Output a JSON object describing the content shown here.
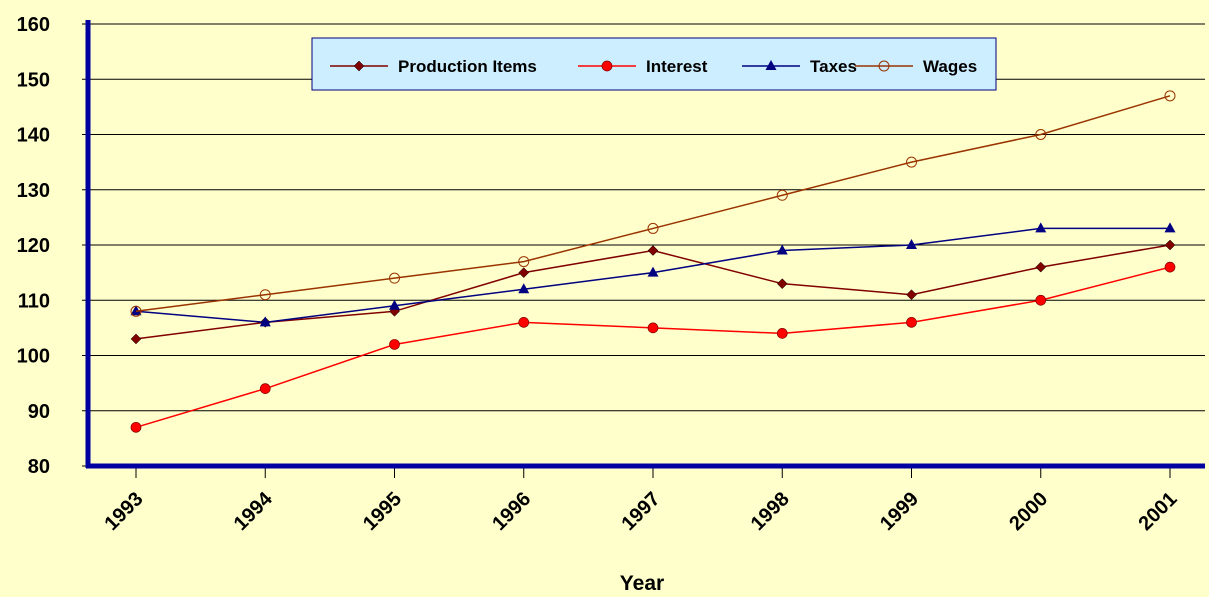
{
  "chart_data": {
    "type": "line",
    "x_label": "Year",
    "categories": [
      "1993",
      "1994",
      "1995",
      "1996",
      "1997",
      "1998",
      "1999",
      "2000",
      "2001"
    ],
    "series": [
      {
        "name": "Production Items",
        "color": "#800000",
        "marker": "diamond",
        "values": [
          103,
          106,
          108,
          115,
          119,
          113,
          111,
          116,
          120
        ]
      },
      {
        "name": "Interest",
        "color": "#ff0000",
        "marker": "circle",
        "values": [
          87,
          94,
          102,
          106,
          105,
          104,
          106,
          110,
          116
        ]
      },
      {
        "name": "Taxes",
        "color": "#000080",
        "marker": "triangle",
        "values": [
          108,
          106,
          109,
          112,
          115,
          119,
          120,
          123,
          123
        ]
      },
      {
        "name": "Wages",
        "color": "#993300",
        "marker": "open-circle",
        "values": [
          108,
          111,
          114,
          117,
          123,
          129,
          135,
          140,
          147
        ]
      }
    ],
    "ylim": [
      80,
      160
    ],
    "yticks": [
      80,
      90,
      100,
      110,
      120,
      130,
      140,
      150,
      160
    ],
    "grid": true,
    "legend": "top"
  }
}
